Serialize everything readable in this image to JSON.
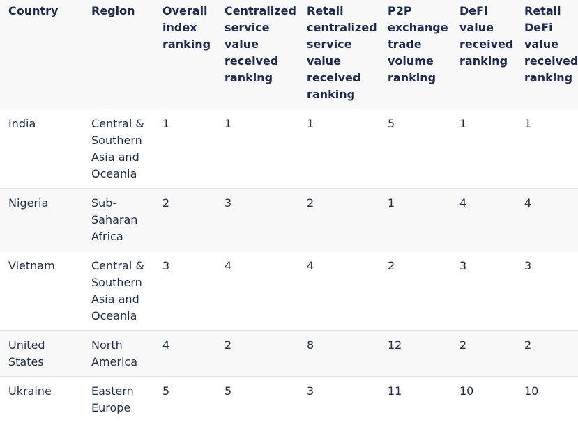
{
  "table": {
    "headers": [
      "Country",
      "Region",
      "Overall index ranking",
      "Centralized service value received ranking",
      "Retail centralized service value received ranking",
      "P2P exchange trade volume ranking",
      "DeFi value received ranking",
      "Retail DeFi value received ranking"
    ],
    "rows": [
      [
        "India",
        "Central & Southern Asia and Oceania",
        "1",
        "1",
        "1",
        "5",
        "1",
        "1"
      ],
      [
        "Nigeria",
        "Sub-Saharan Africa",
        "2",
        "3",
        "2",
        "1",
        "4",
        "4"
      ],
      [
        "Vietnam",
        "Central & Southern Asia and Oceania",
        "3",
        "4",
        "4",
        "2",
        "3",
        "3"
      ],
      [
        "United States",
        "North America",
        "4",
        "2",
        "8",
        "12",
        "2",
        "2"
      ],
      [
        "Ukraine",
        "Eastern Europe",
        "5",
        "5",
        "3",
        "11",
        "10",
        "10"
      ]
    ]
  }
}
